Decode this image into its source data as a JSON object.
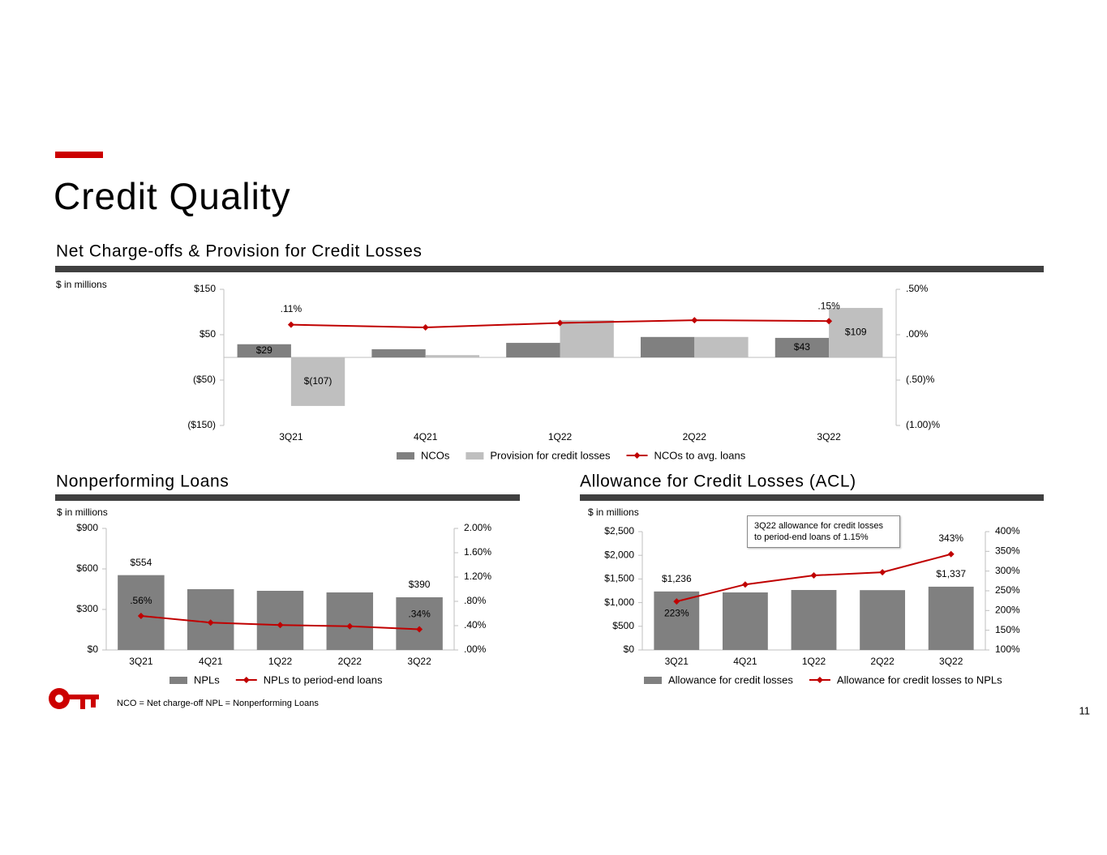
{
  "title": "Credit Quality",
  "footnote": "NCO = Net charge-off   NPL = Nonperforming Loans",
  "page_number": "11",
  "chart_data": [
    {
      "type": "bar",
      "title": "Net Charge-offs & Provision for Credit Losses",
      "ylabel": "$ in millions",
      "categories": [
        "3Q21",
        "4Q21",
        "1Q22",
        "2Q22",
        "3Q22"
      ],
      "series": [
        {
          "name": "NCOs",
          "color": "#808080",
          "values": [
            29,
            18,
            32,
            45,
            43
          ],
          "value_labels": [
            "$29",
            null,
            null,
            null,
            "$43"
          ]
        },
        {
          "name": "Provision for credit losses",
          "color": "#bfbfbf",
          "values": [
            -107,
            5,
            82,
            45,
            109
          ],
          "value_labels": [
            "$(107)",
            null,
            null,
            null,
            "$109"
          ]
        },
        {
          "name": "NCOs to avg. loans",
          "type": "line",
          "axis": "y2",
          "color": "#c00000",
          "values": [
            0.11,
            0.08,
            0.13,
            0.16,
            0.15
          ],
          "value_labels": [
            ".11%",
            null,
            null,
            null,
            ".15%"
          ]
        }
      ],
      "ylim": [
        -150,
        150
      ],
      "yticks": [
        {
          "value": 150,
          "label": "$150"
        },
        {
          "value": 50,
          "label": "$50"
        },
        {
          "value": -50,
          "label": "($50)"
        },
        {
          "value": -150,
          "label": "($150)"
        }
      ],
      "y2lim": [
        -1.0,
        0.5
      ],
      "y2ticks": [
        {
          "value": 0.5,
          "label": ".50%"
        },
        {
          "value": 0,
          "label": ".00%"
        },
        {
          "value": -0.5,
          "label": "(.50)%"
        },
        {
          "value": -1.0,
          "label": "(1.00)%"
        }
      ]
    },
    {
      "type": "bar",
      "title": "Nonperforming Loans",
      "ylabel": "$ in millions",
      "categories": [
        "3Q21",
        "4Q21",
        "1Q22",
        "2Q22",
        "3Q22"
      ],
      "series": [
        {
          "name": "NPLs",
          "color": "#808080",
          "values": [
            554,
            450,
            438,
            426,
            390
          ],
          "value_labels": [
            "$554",
            null,
            null,
            null,
            "$390"
          ]
        },
        {
          "name": "NPLs to period-end loans",
          "type": "line",
          "axis": "y2",
          "color": "#c00000",
          "values": [
            0.56,
            0.45,
            0.41,
            0.39,
            0.34
          ],
          "value_labels": [
            ".56%",
            null,
            null,
            null,
            ".34%"
          ]
        }
      ],
      "ylim": [
        0,
        900
      ],
      "yticks": [
        {
          "value": 0,
          "label": "$0"
        },
        {
          "value": 300,
          "label": "$300"
        },
        {
          "value": 600,
          "label": "$600"
        },
        {
          "value": 900,
          "label": "$900"
        }
      ],
      "y2lim": [
        0,
        2.0
      ],
      "y2ticks": [
        {
          "value": 0,
          "label": ".00%"
        },
        {
          "value": 0.4,
          "label": ".40%"
        },
        {
          "value": 0.8,
          "label": ".80%"
        },
        {
          "value": 1.2,
          "label": "1.20%"
        },
        {
          "value": 1.6,
          "label": "1.60%"
        },
        {
          "value": 2.0,
          "label": "2.00%"
        }
      ]
    },
    {
      "type": "bar",
      "title": "Allowance for Credit Losses (ACL)",
      "ylabel": "$ in millions",
      "annotation": "3Q22 allowance for credit losses to period-end loans of 1.15%",
      "categories": [
        "3Q21",
        "4Q21",
        "1Q22",
        "2Q22",
        "3Q22"
      ],
      "series": [
        {
          "name": "Allowance for credit losses",
          "color": "#808080",
          "values": [
            1236,
            1216,
            1267,
            1264,
            1337
          ],
          "value_labels": [
            "$1,236",
            null,
            null,
            null,
            "$1,337"
          ]
        },
        {
          "name": "Allowance for credit losses to NPLs",
          "type": "line",
          "axis": "y2",
          "color": "#c00000",
          "values": [
            223,
            266,
            289,
            297,
            343
          ],
          "value_labels": [
            "223%",
            null,
            null,
            null,
            "343%"
          ]
        }
      ],
      "ylim": [
        0,
        2500
      ],
      "yticks": [
        {
          "value": 0,
          "label": "$0"
        },
        {
          "value": 500,
          "label": "$500"
        },
        {
          "value": 1000,
          "label": "$1,000"
        },
        {
          "value": 1500,
          "label": "$1,500"
        },
        {
          "value": 2000,
          "label": "$2,000"
        },
        {
          "value": 2500,
          "label": "$2,500"
        }
      ],
      "y2lim": [
        100,
        400
      ],
      "y2ticks": [
        {
          "value": 100,
          "label": "100%"
        },
        {
          "value": 150,
          "label": "150%"
        },
        {
          "value": 200,
          "label": "200%"
        },
        {
          "value": 250,
          "label": "250%"
        },
        {
          "value": 300,
          "label": "300%"
        },
        {
          "value": 350,
          "label": "350%"
        },
        {
          "value": 400,
          "label": "400%"
        }
      ]
    }
  ]
}
